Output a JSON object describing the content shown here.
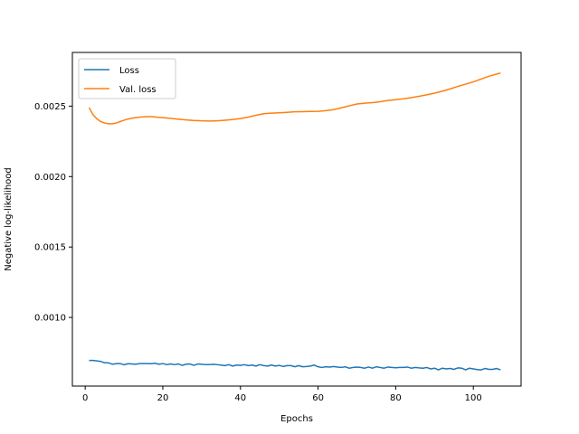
{
  "chart_data": {
    "type": "line",
    "title": "",
    "xlabel": "Epochs",
    "ylabel": "Negative log-likelihood",
    "xlim": [
      -3.3,
      112.3
    ],
    "ylim": [
      0.000513,
      0.002881
    ],
    "x_ticks": [
      0,
      20,
      40,
      60,
      80,
      100
    ],
    "x_tick_labels": [
      "0",
      "20",
      "40",
      "60",
      "80",
      "100"
    ],
    "y_ticks": [
      0.001,
      0.0015,
      0.002,
      0.0025
    ],
    "y_tick_labels": [
      "0.0010",
      "0.0015",
      "0.0020",
      "0.0025"
    ],
    "grid": false,
    "legend_position": "upper-left",
    "series": [
      {
        "name": "Loss",
        "color": "#1f77b4",
        "x": [
          1,
          2,
          3,
          4,
          5,
          6,
          7,
          8,
          9,
          10,
          11,
          12,
          13,
          14,
          15,
          16,
          17,
          18,
          19,
          20,
          21,
          22,
          23,
          24,
          25,
          26,
          27,
          28,
          29,
          30,
          31,
          32,
          33,
          34,
          35,
          36,
          37,
          38,
          39,
          40,
          41,
          42,
          43,
          44,
          45,
          46,
          47,
          48,
          49,
          50,
          51,
          52,
          53,
          54,
          55,
          56,
          57,
          58,
          59,
          60,
          61,
          62,
          63,
          64,
          65,
          66,
          67,
          68,
          69,
          70,
          71,
          72,
          73,
          74,
          75,
          76,
          77,
          78,
          79,
          80,
          81,
          82,
          83,
          84,
          85,
          86,
          87,
          88,
          89,
          90,
          91,
          92,
          93,
          94,
          95,
          96,
          97,
          98,
          99,
          100,
          101,
          102,
          103,
          104,
          105,
          106,
          107
        ],
        "y": [
          0.000695,
          0.000695,
          0.000692,
          0.000688,
          0.000678,
          0.000678,
          0.000668,
          0.000672,
          0.000673,
          0.000664,
          0.000672,
          0.00067,
          0.000668,
          0.000673,
          0.000673,
          0.000673,
          0.000672,
          0.000675,
          0.000668,
          0.000673,
          0.000665,
          0.00067,
          0.000665,
          0.00067,
          0.00066,
          0.000668,
          0.00067,
          0.00066,
          0.00067,
          0.000668,
          0.000665,
          0.000665,
          0.000668,
          0.000665,
          0.000662,
          0.000658,
          0.000665,
          0.000655,
          0.000662,
          0.00066,
          0.000665,
          0.000658,
          0.000662,
          0.000655,
          0.000665,
          0.000658,
          0.000655,
          0.000662,
          0.000655,
          0.00066,
          0.000652,
          0.000658,
          0.000658,
          0.00065,
          0.000658,
          0.00065,
          0.000652,
          0.000655,
          0.000662,
          0.00065,
          0.000645,
          0.00065,
          0.000648,
          0.000652,
          0.000648,
          0.000645,
          0.00065,
          0.00064,
          0.000645,
          0.000648,
          0.000645,
          0.00064,
          0.000648,
          0.00064,
          0.00065,
          0.000645,
          0.00064,
          0.000648,
          0.000645,
          0.000643,
          0.000645,
          0.000645,
          0.000648,
          0.00064,
          0.000645,
          0.000642,
          0.00064,
          0.000645,
          0.000635,
          0.00064,
          0.000628,
          0.00064,
          0.000635,
          0.000638,
          0.000632,
          0.000642,
          0.00064,
          0.000628,
          0.00064,
          0.000635,
          0.00063,
          0.000628,
          0.000638,
          0.000632,
          0.000632,
          0.000638,
          0.000628
        ]
      },
      {
        "name": "Val. loss",
        "color": "#ff7f0e",
        "x": [
          1,
          2,
          3,
          4,
          5,
          6,
          7,
          8,
          9,
          10,
          11,
          12,
          13,
          14,
          15,
          16,
          17,
          18,
          19,
          20,
          22,
          24,
          26,
          28,
          30,
          32,
          34,
          36,
          38,
          40,
          42,
          44,
          46,
          48,
          50,
          52,
          54,
          56,
          58,
          60,
          62,
          64,
          66,
          68,
          70,
          72,
          74,
          76,
          78,
          80,
          82,
          84,
          86,
          88,
          90,
          92,
          94,
          96,
          98,
          100,
          102,
          104,
          107
        ],
        "y": [
          0.00249,
          0.00244,
          0.00241,
          0.00239,
          0.00238,
          0.002375,
          0.002375,
          0.00238,
          0.00239,
          0.0024,
          0.002408,
          0.002414,
          0.002418,
          0.002422,
          0.002424,
          0.002425,
          0.002425,
          0.002423,
          0.00242,
          0.002418,
          0.002413,
          0.002407,
          0.002402,
          0.002398,
          0.002396,
          0.002394,
          0.002396,
          0.0024,
          0.002405,
          0.002412,
          0.002422,
          0.002435,
          0.002446,
          0.00245,
          0.002453,
          0.002456,
          0.00246,
          0.002461,
          0.002462,
          0.002463,
          0.002468,
          0.002475,
          0.002488,
          0.002502,
          0.002515,
          0.002521,
          0.002525,
          0.002531,
          0.00254,
          0.002546,
          0.002552,
          0.00256,
          0.00257,
          0.00258,
          0.002592,
          0.002606,
          0.002622,
          0.00264,
          0.002656,
          0.002672,
          0.002692,
          0.002712,
          0.002735
        ]
      }
    ]
  }
}
